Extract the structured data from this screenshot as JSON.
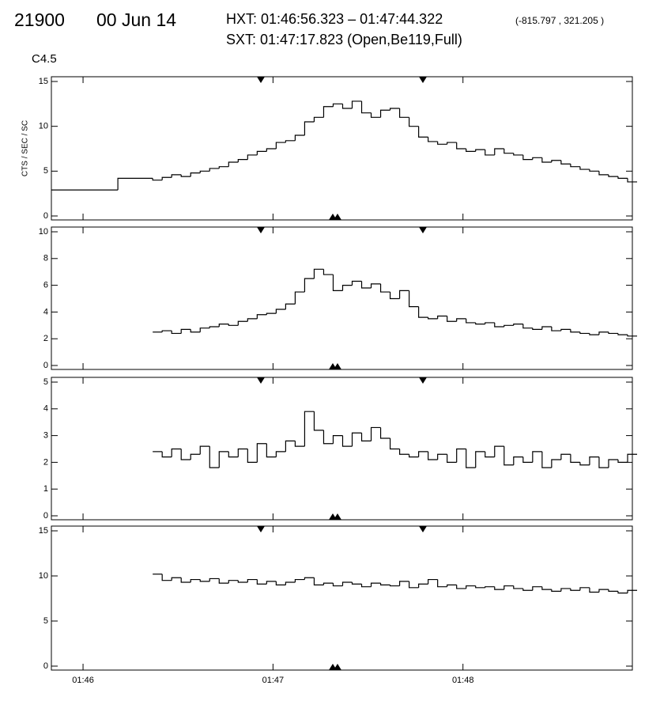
{
  "header": {
    "event": "21900",
    "date": "00 Jun 14",
    "hxt": "HXT: 01:46:56.323 – 01:47:44.322",
    "coords": "(-815.797 , 321.205 )",
    "sxt": "SXT: 01:47:17.823 (Open,Be119,Full)",
    "goes_class": "C4.5"
  },
  "chart_data": [
    {
      "type": "line",
      "y_label": "CTS / SEC / SC",
      "x": [
        6350,
        6371,
        6382,
        6385,
        6388,
        6391,
        6394,
        6397,
        6400,
        6403,
        6406,
        6409,
        6412,
        6415,
        6418,
        6421,
        6424,
        6427,
        6430,
        6433,
        6436,
        6439,
        6442,
        6445,
        6448,
        6451,
        6454,
        6457,
        6460,
        6463,
        6466,
        6469,
        6472,
        6475,
        6478,
        6481,
        6484,
        6487,
        6490,
        6493,
        6496,
        6499,
        6502,
        6505,
        6508,
        6511,
        6514,
        6517,
        6520,
        6523,
        6526,
        6529,
        6532
      ],
      "values": [
        2.9,
        4.2,
        4.0,
        4.3,
        4.6,
        4.4,
        4.8,
        5.0,
        5.3,
        5.5,
        6.0,
        6.3,
        6.8,
        7.2,
        7.5,
        8.2,
        8.4,
        9.0,
        10.5,
        11.0,
        12.2,
        12.5,
        12.0,
        12.8,
        11.5,
        11.0,
        11.8,
        12.0,
        11.0,
        10.0,
        8.8,
        8.3,
        8.0,
        8.2,
        7.5,
        7.2,
        7.4,
        6.8,
        7.5,
        7.0,
        6.8,
        6.3,
        6.5,
        6.0,
        6.2,
        5.8,
        5.5,
        5.2,
        5.0,
        4.6,
        4.4,
        4.2,
        3.8
      ],
      "color": "#000000",
      "ylim": [
        0,
        15
      ],
      "yticks": [
        0,
        5,
        10,
        15
      ],
      "xlim": [
        6350,
        6533.5
      ],
      "xticks": [
        {
          "value": 6360,
          "label": "01:46"
        },
        {
          "value": 6420,
          "label": "01:47"
        },
        {
          "value": 6480,
          "label": "01:48"
        }
      ]
    },
    {
      "type": "line",
      "x": [
        6382,
        6385,
        6388,
        6391,
        6394,
        6397,
        6400,
        6403,
        6406,
        6409,
        6412,
        6415,
        6418,
        6421,
        6424,
        6427,
        6430,
        6433,
        6436,
        6439,
        6442,
        6445,
        6448,
        6451,
        6454,
        6457,
        6460,
        6463,
        6466,
        6469,
        6472,
        6475,
        6478,
        6481,
        6484,
        6487,
        6490,
        6493,
        6496,
        6499,
        6502,
        6505,
        6508,
        6511,
        6514,
        6517,
        6520,
        6523,
        6526,
        6529,
        6532
      ],
      "values": [
        2.5,
        2.6,
        2.4,
        2.7,
        2.5,
        2.8,
        2.9,
        3.1,
        3.0,
        3.3,
        3.5,
        3.8,
        3.9,
        4.2,
        4.6,
        5.5,
        6.5,
        7.2,
        6.8,
        5.6,
        6.0,
        6.3,
        5.8,
        6.1,
        5.5,
        5.0,
        5.6,
        4.4,
        3.6,
        3.5,
        3.7,
        3.3,
        3.5,
        3.2,
        3.1,
        3.2,
        2.9,
        3.0,
        3.1,
        2.8,
        2.7,
        2.9,
        2.6,
        2.7,
        2.5,
        2.4,
        2.3,
        2.5,
        2.4,
        2.3,
        2.2
      ],
      "color": "#000000",
      "ylim": [
        0,
        10
      ],
      "yticks": [
        0,
        2,
        4,
        6,
        8,
        10
      ],
      "xlim": [
        6350,
        6533.5
      ],
      "xticks": [
        {
          "value": 6360,
          "label": "01:46"
        },
        {
          "value": 6420,
          "label": "01:47"
        },
        {
          "value": 6480,
          "label": "01:48"
        }
      ]
    },
    {
      "type": "line",
      "x": [
        6382,
        6385,
        6388,
        6391,
        6394,
        6397,
        6400,
        6403,
        6406,
        6409,
        6412,
        6415,
        6418,
        6421,
        6424,
        6427,
        6430,
        6433,
        6436,
        6439,
        6442,
        6445,
        6448,
        6451,
        6454,
        6457,
        6460,
        6463,
        6466,
        6469,
        6472,
        6475,
        6478,
        6481,
        6484,
        6487,
        6490,
        6493,
        6496,
        6499,
        6502,
        6505,
        6508,
        6511,
        6514,
        6517,
        6520,
        6523,
        6526,
        6529,
        6532
      ],
      "values": [
        2.4,
        2.2,
        2.5,
        2.1,
        2.3,
        2.6,
        1.8,
        2.4,
        2.2,
        2.5,
        2.0,
        2.7,
        2.2,
        2.4,
        2.8,
        2.6,
        3.9,
        3.2,
        2.7,
        3.0,
        2.6,
        3.1,
        2.8,
        3.3,
        2.9,
        2.5,
        2.3,
        2.2,
        2.4,
        2.1,
        2.3,
        2.0,
        2.5,
        1.8,
        2.4,
        2.2,
        2.6,
        1.9,
        2.2,
        2.0,
        2.4,
        1.8,
        2.1,
        2.3,
        2.0,
        1.9,
        2.2,
        1.8,
        2.1,
        2.0,
        2.3
      ],
      "color": "#000000",
      "ylim": [
        0,
        5
      ],
      "yticks": [
        0,
        1,
        2,
        3,
        4,
        5
      ],
      "xlim": [
        6350,
        6533.5
      ],
      "xticks": [
        {
          "value": 6360,
          "label": "01:46"
        },
        {
          "value": 6420,
          "label": "01:47"
        },
        {
          "value": 6480,
          "label": "01:48"
        }
      ]
    },
    {
      "type": "line",
      "x": [
        6382,
        6385,
        6388,
        6391,
        6394,
        6397,
        6400,
        6403,
        6406,
        6409,
        6412,
        6415,
        6418,
        6421,
        6424,
        6427,
        6430,
        6433,
        6436,
        6439,
        6442,
        6445,
        6448,
        6451,
        6454,
        6457,
        6460,
        6463,
        6466,
        6469,
        6472,
        6475,
        6478,
        6481,
        6484,
        6487,
        6490,
        6493,
        6496,
        6499,
        6502,
        6505,
        6508,
        6511,
        6514,
        6517,
        6520,
        6523,
        6526,
        6529,
        6532
      ],
      "values": [
        10.2,
        9.5,
        9.8,
        9.3,
        9.6,
        9.4,
        9.7,
        9.2,
        9.5,
        9.3,
        9.6,
        9.1,
        9.4,
        9.0,
        9.3,
        9.6,
        9.8,
        9.0,
        9.2,
        8.9,
        9.3,
        9.1,
        8.8,
        9.2,
        9.0,
        8.9,
        9.4,
        8.7,
        9.1,
        9.6,
        8.8,
        9.0,
        8.6,
        8.9,
        8.7,
        8.8,
        8.5,
        8.9,
        8.6,
        8.4,
        8.8,
        8.5,
        8.3,
        8.6,
        8.4,
        8.7,
        8.2,
        8.5,
        8.3,
        8.1,
        8.4
      ],
      "color": "#000000",
      "ylim": [
        0,
        15
      ],
      "yticks": [
        0,
        5,
        10,
        15
      ],
      "xlim": [
        6350,
        6533.5
      ],
      "xticks": [
        {
          "value": 6360,
          "label": "01:46"
        },
        {
          "value": 6420,
          "label": "01:47"
        },
        {
          "value": 6480,
          "label": "01:48"
        }
      ],
      "show_xtick_labels": true
    }
  ]
}
